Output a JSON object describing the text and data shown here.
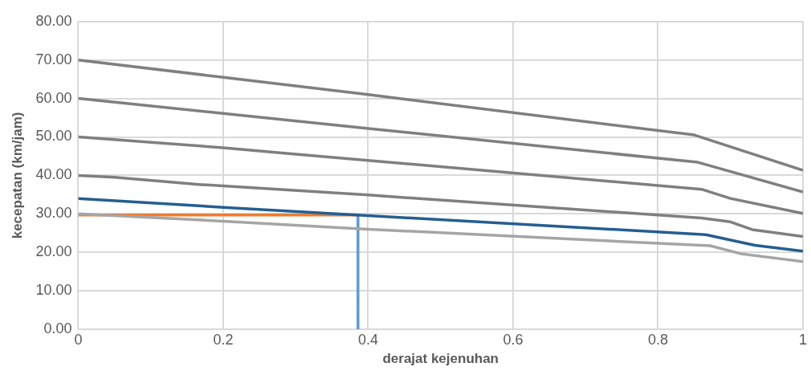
{
  "chart_data": {
    "type": "line",
    "xlabel": "derajat kejenuhan",
    "ylabel": "kecepatan (km/jam)",
    "xlim": [
      0,
      1
    ],
    "xticks": [
      0,
      {
        "value": 0.2,
        "label": "0.2"
      },
      {
        "value": 0.4,
        "label": "0.4"
      },
      {
        "value": 0.6,
        "label": "0.6"
      },
      {
        "value": 0.8,
        "label": "0.8"
      },
      1
    ],
    "ylim": [
      0,
      80
    ],
    "yticks": [
      {
        "value": 0,
        "label": "0.00"
      },
      {
        "value": 10,
        "label": "10.00"
      },
      {
        "value": 20,
        "label": "20.00"
      },
      {
        "value": 30,
        "label": "30.00"
      },
      {
        "value": 40,
        "label": "40.00"
      },
      {
        "value": 50,
        "label": "50.00"
      },
      {
        "value": 60,
        "label": "60.00"
      },
      {
        "value": 70,
        "label": "70.00"
      },
      {
        "value": 80,
        "label": "80.00"
      }
    ],
    "grid": true,
    "legend": false,
    "marker": "none",
    "line_style": "solid",
    "series": [
      {
        "color": "#7f7f7f",
        "x": [
          0,
          0.2,
          0.4,
          0.85,
          1
        ],
        "values": [
          70,
          65.5,
          61,
          50.5,
          41.3
        ]
      },
      {
        "color": "#7f7f7f",
        "x": [
          0,
          0.2,
          0.4,
          0.855,
          1
        ],
        "values": [
          60,
          56.1,
          52.2,
          43.4,
          35.7
        ]
      },
      {
        "color": "#7f7f7f",
        "x": [
          0,
          0.2,
          0.3,
          0.86,
          0.9,
          1
        ],
        "values": [
          50,
          47.2,
          45.5,
          36.4,
          34,
          30.1
        ]
      },
      {
        "color": "#7f7f7f",
        "x": [
          0,
          0.05,
          0.17,
          0.4,
          0.86,
          0.9,
          0.93,
          1
        ],
        "values": [
          40,
          39.5,
          37.6,
          34.9,
          28.9,
          27.9,
          25.9,
          24.1
        ]
      },
      {
        "color": "#255e91",
        "x": [
          0,
          0.2,
          0.385,
          0.866,
          0.912,
          0.934,
          1
        ],
        "values": [
          34,
          31.7,
          29.7,
          24.6,
          22.7,
          21.8,
          20.3
        ]
      },
      {
        "color": "#a5a5a5",
        "x": [
          0,
          0.2,
          0.4,
          0.872,
          0.915,
          1
        ],
        "values": [
          30,
          28.1,
          26,
          21.7,
          19.6,
          17.6
        ]
      },
      {
        "color": "#ed7d31",
        "x": [
          0,
          0.386
        ],
        "values": [
          29.7,
          29.7
        ]
      },
      {
        "color": "#5b9bd5",
        "x": [
          0.386,
          0.386
        ],
        "values": [
          0,
          29.7
        ]
      }
    ]
  }
}
